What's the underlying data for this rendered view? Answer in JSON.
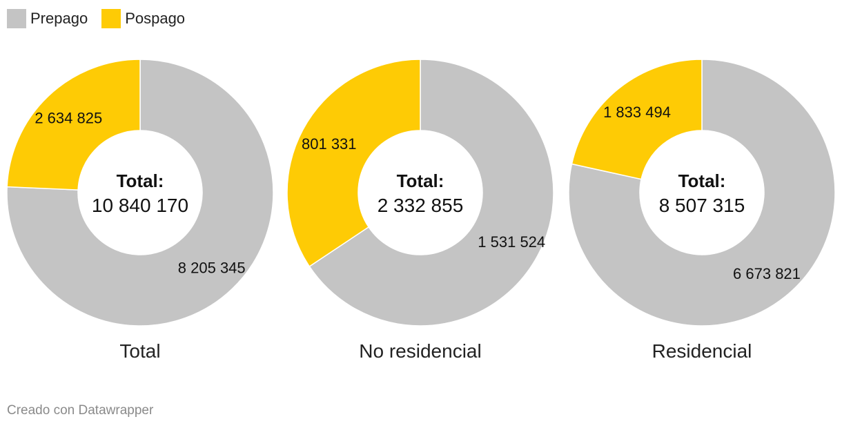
{
  "legend": [
    {
      "label": "Prepago",
      "color": "#c4c4c4"
    },
    {
      "label": "Pospago",
      "color": "#fecb05"
    }
  ],
  "center_label": "Total:",
  "footer": "Creado con Datawrapper",
  "chart_data": [
    {
      "type": "pie",
      "title": "Total",
      "total": "10 840 170",
      "slices": [
        {
          "name": "Prepago",
          "value": 8205345,
          "label": "8 205 345"
        },
        {
          "name": "Pospago",
          "value": 2634825,
          "label": "2 634 825"
        }
      ]
    },
    {
      "type": "pie",
      "title": "No residencial",
      "total": "2 332 855",
      "slices": [
        {
          "name": "Prepago",
          "value": 1531524,
          "label": "1 531 524"
        },
        {
          "name": "Pospago",
          "value": 801331,
          "label": "801 331"
        }
      ]
    },
    {
      "type": "pie",
      "title": "Residencial",
      "total": "8 507 315",
      "slices": [
        {
          "name": "Prepago",
          "value": 6673821,
          "label": "6 673 821"
        },
        {
          "name": "Pospago",
          "value": 1833494,
          "label": "1 833 494"
        }
      ]
    }
  ]
}
